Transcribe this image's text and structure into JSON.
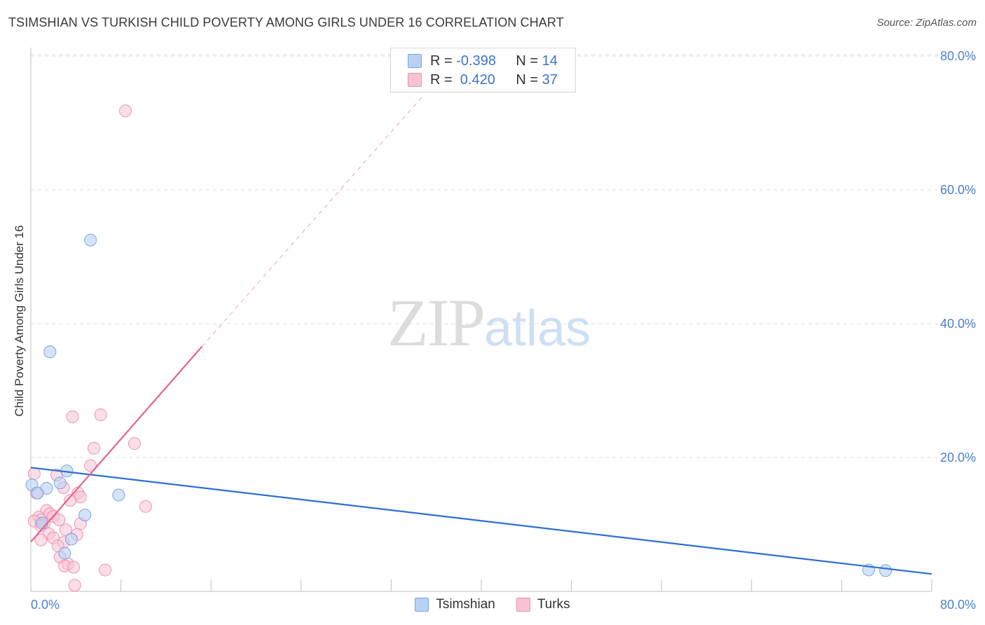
{
  "header": {
    "title": "TSIMSHIAN VS TURKISH CHILD POVERTY AMONG GIRLS UNDER 16 CORRELATION CHART",
    "source": "Source: ZipAtlas.com"
  },
  "watermark": {
    "zip": "ZIP",
    "atlas": "atlas"
  },
  "legend": {
    "rows": [
      {
        "r_label": "R =",
        "r_value": "-0.398",
        "n_label": "N =",
        "n_value": "14"
      },
      {
        "r_label": "R =",
        "r_value": " 0.420",
        "n_label": "N =",
        "n_value": "37"
      }
    ]
  },
  "colors": {
    "tsimshian_fill": "#b8d1f3",
    "tsimshian_stroke": "#7aa5e0",
    "tsimshian_line": "#2c6fd0",
    "turks_fill": "#f7c2d3",
    "turks_stroke": "#ec93b3",
    "turks_line": "#e8628f",
    "grid": "#dddddd",
    "tick": "#4a7fd0"
  },
  "chart_data": {
    "type": "scatter",
    "title": "TSIMSHIAN VS TURKISH CHILD POVERTY AMONG GIRLS UNDER 16 CORRELATION CHART",
    "xlabel": "",
    "ylabel": "Child Poverty Among Girls Under 16",
    "xlim": [
      0,
      80
    ],
    "ylim": [
      0,
      80
    ],
    "x_tick_labels": [
      "0.0%",
      "80.0%"
    ],
    "y_ticks": [
      20,
      40,
      60,
      80
    ],
    "y_tick_labels": [
      "20.0%",
      "40.0%",
      "60.0%",
      "80.0%"
    ],
    "grid": true,
    "legend_position": "bottom",
    "series": [
      {
        "name": "Tsimshian",
        "R": -0.398,
        "N": 14,
        "points": [
          [
            5.3,
            52.5
          ],
          [
            1.7,
            35.8
          ],
          [
            3.2,
            18.0
          ],
          [
            2.6,
            16.2
          ],
          [
            1.4,
            15.4
          ],
          [
            0.1,
            15.9
          ],
          [
            0.6,
            14.7
          ],
          [
            7.8,
            14.4
          ],
          [
            4.8,
            11.4
          ],
          [
            1.0,
            10.2
          ],
          [
            3.6,
            7.8
          ],
          [
            3.0,
            5.7
          ],
          [
            74.4,
            3.2
          ],
          [
            75.9,
            3.1
          ]
        ],
        "trend": {
          "x": [
            0,
            80
          ],
          "y": [
            18.5,
            2.6
          ]
        }
      },
      {
        "name": "Turks",
        "R": 0.42,
        "N": 37,
        "points": [
          [
            8.4,
            71.8
          ],
          [
            6.2,
            26.4
          ],
          [
            3.7,
            26.1
          ],
          [
            9.2,
            22.1
          ],
          [
            5.6,
            21.4
          ],
          [
            5.3,
            18.8
          ],
          [
            0.3,
            17.6
          ],
          [
            2.3,
            17.4
          ],
          [
            2.9,
            15.5
          ],
          [
            0.5,
            14.7
          ],
          [
            4.2,
            14.7
          ],
          [
            4.4,
            14.1
          ],
          [
            3.5,
            13.6
          ],
          [
            10.2,
            12.7
          ],
          [
            1.4,
            12.1
          ],
          [
            1.7,
            11.6
          ],
          [
            2.0,
            11.2
          ],
          [
            0.7,
            11.1
          ],
          [
            0.9,
            10.7
          ],
          [
            2.5,
            10.7
          ],
          [
            0.3,
            10.5
          ],
          [
            1.2,
            10.2
          ],
          [
            4.4,
            10.1
          ],
          [
            0.9,
            9.8
          ],
          [
            3.1,
            9.2
          ],
          [
            1.6,
            8.6
          ],
          [
            4.1,
            8.5
          ],
          [
            2.0,
            8.0
          ],
          [
            0.9,
            7.7
          ],
          [
            2.9,
            7.3
          ],
          [
            2.4,
            6.8
          ],
          [
            2.6,
            5.1
          ],
          [
            3.3,
            4.1
          ],
          [
            3.0,
            3.8
          ],
          [
            3.8,
            3.6
          ],
          [
            6.6,
            3.2
          ],
          [
            3.9,
            0.9
          ]
        ],
        "trend": {
          "x": [
            0,
            15.2
          ],
          "y": [
            7.4,
            36.6
          ]
        },
        "trend_extension": {
          "x": [
            15.2,
            34.8
          ],
          "y": [
            36.6,
            74.0
          ]
        }
      }
    ]
  },
  "bottom_legend": {
    "items": [
      "Tsimshian",
      "Turks"
    ]
  }
}
